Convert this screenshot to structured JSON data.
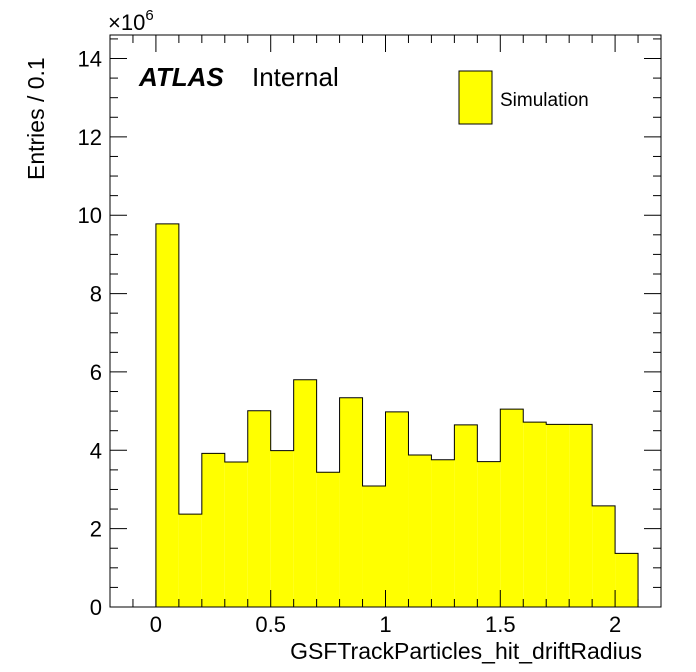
{
  "chart_data": {
    "type": "bar",
    "histogram": true,
    "xlabel": "GSFTrackParticles_hit_driftRadius",
    "ylabel": "Entries / 0.1",
    "y_multiplier": "×10",
    "y_multiplier_exponent": "6",
    "xlim": [
      -0.2,
      2.2
    ],
    "ylim": [
      0,
      14.6
    ],
    "x_ticks": [
      {
        "value": 0,
        "label": "0"
      },
      {
        "value": 0.5,
        "label": "0.5"
      },
      {
        "value": 1,
        "label": "1"
      },
      {
        "value": 1.5,
        "label": "1.5"
      },
      {
        "value": 2,
        "label": "2"
      }
    ],
    "y_ticks": [
      {
        "value": 0,
        "label": "0"
      },
      {
        "value": 2,
        "label": "2"
      },
      {
        "value": 4,
        "label": "4"
      },
      {
        "value": 6,
        "label": "6"
      },
      {
        "value": 8,
        "label": "8"
      },
      {
        "value": 10,
        "label": "10"
      },
      {
        "value": 12,
        "label": "12"
      },
      {
        "value": 14,
        "label": "14"
      }
    ],
    "bin_width": 0.1,
    "bin_edges": [
      0,
      0.1,
      0.2,
      0.3,
      0.4,
      0.5,
      0.6,
      0.7,
      0.8,
      0.9,
      1.0,
      1.1,
      1.2,
      1.3,
      1.4,
      1.5,
      1.6,
      1.7,
      1.8,
      1.9,
      2.0,
      2.1
    ],
    "series": [
      {
        "name": "Simulation",
        "color": "#ffff00",
        "values": [
          9.78,
          2.37,
          3.92,
          3.7,
          5.01,
          3.99,
          5.8,
          3.44,
          5.34,
          3.09,
          4.98,
          3.88,
          3.76,
          4.65,
          3.71,
          5.05,
          4.72,
          4.66,
          4.66,
          2.58,
          1.37
        ]
      }
    ],
    "atlas_label": "ATLAS",
    "atlas_sublabel": "Internal",
    "legend_position": "top-right",
    "grid": false
  }
}
